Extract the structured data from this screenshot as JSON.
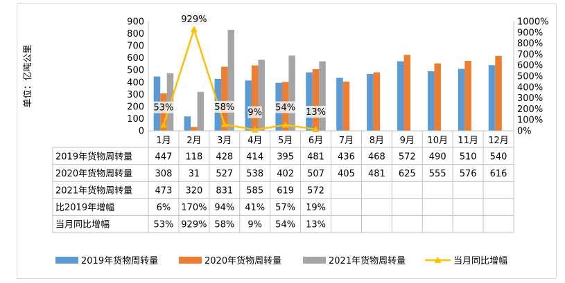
{
  "chart_data": {
    "type": "bar+line",
    "categories": [
      "1月",
      "2月",
      "3月",
      "4月",
      "5月",
      "6月",
      "7月",
      "8月",
      "9月",
      "10月",
      "11月",
      "12月"
    ],
    "series": [
      {
        "name": "2019年货物周转量",
        "kind": "bar",
        "axis": "left",
        "color": "#5b9bd5",
        "values": [
          447,
          118,
          428,
          414,
          395,
          481,
          436,
          468,
          572,
          490,
          510,
          540
        ]
      },
      {
        "name": "2020年货物周转量",
        "kind": "bar",
        "axis": "left",
        "color": "#ed7d31",
        "values": [
          308,
          31,
          527,
          538,
          402,
          507,
          405,
          481,
          625,
          555,
          576,
          616
        ]
      },
      {
        "name": "2021年货物周转量",
        "kind": "bar",
        "axis": "left",
        "color": "#a5a5a5",
        "values": [
          473,
          320,
          831,
          585,
          619,
          572,
          null,
          null,
          null,
          null,
          null,
          null
        ]
      },
      {
        "name": "当月同比增幅",
        "kind": "line",
        "axis": "right",
        "color": "#ffc000",
        "values": [
          53,
          929,
          58,
          9,
          54,
          13,
          null,
          null,
          null,
          null,
          null,
          null
        ]
      }
    ],
    "data_labels": [
      "53%",
      "929%",
      "58%",
      "9%",
      "54%",
      "13%"
    ],
    "ylabel": "单位：亿吨公里",
    "ylim": [
      0,
      900
    ],
    "y_ticks": [
      "0",
      "100",
      "200",
      "300",
      "400",
      "500",
      "600",
      "700",
      "800",
      "900"
    ],
    "y2lim": [
      0,
      1000
    ],
    "y2_ticks": [
      "0%",
      "100%",
      "200%",
      "300%",
      "400%",
      "500%",
      "600%",
      "700%",
      "800%",
      "900%",
      "1000%"
    ],
    "table": {
      "rows": [
        {
          "label": "2019年货物周转量",
          "cells": [
            "447",
            "118",
            "428",
            "414",
            "395",
            "481",
            "436",
            "468",
            "572",
            "490",
            "510",
            "540"
          ]
        },
        {
          "label": "2020年货物周转量",
          "cells": [
            "308",
            "31",
            "527",
            "538",
            "402",
            "507",
            "405",
            "481",
            "625",
            "555",
            "576",
            "616"
          ]
        },
        {
          "label": "2021年货物周转量",
          "cells": [
            "473",
            "320",
            "831",
            "585",
            "619",
            "572",
            "",
            "",
            "",
            "",
            "",
            ""
          ]
        },
        {
          "label": "比2019年增幅",
          "cells": [
            "6%",
            "170%",
            "94%",
            "41%",
            "57%",
            "19%",
            "",
            "",
            "",
            "",
            "",
            ""
          ]
        },
        {
          "label": "当月同比增幅",
          "cells": [
            "53%",
            "929%",
            "58%",
            "9%",
            "54%",
            "13%",
            "",
            "",
            "",
            "",
            "",
            ""
          ]
        }
      ]
    },
    "legend": [
      "2019年货物周转量",
      "2020年货物周转量",
      "2021年货物周转量",
      "当月同比增幅"
    ],
    "legend_position": "bottom"
  }
}
